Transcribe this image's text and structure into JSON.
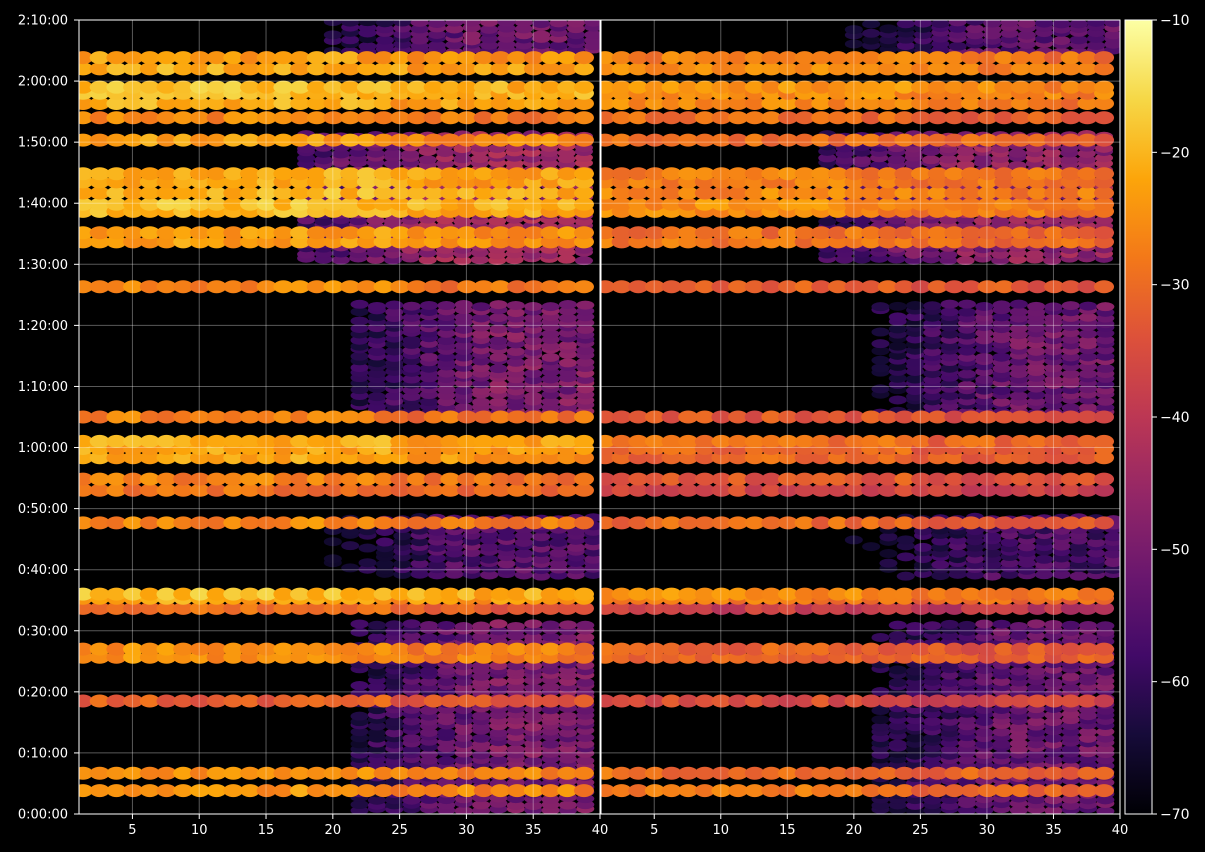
{
  "chart_data": {
    "type": "heatmap",
    "title": "",
    "xlabel": "",
    "ylabel": "",
    "background": "#000000",
    "colormap": "inferno",
    "grid": true,
    "panels": [
      {
        "name": "left",
        "x_range": [
          1,
          40
        ],
        "x_ticks": [
          5,
          10,
          15,
          20,
          25,
          30,
          35,
          40
        ],
        "x_tick_labels": [
          "5",
          "10",
          "15",
          "20",
          "25",
          "30",
          "35",
          "40"
        ]
      },
      {
        "name": "right",
        "x_range": [
          1,
          40
        ],
        "x_ticks": [
          5,
          10,
          15,
          20,
          25,
          30,
          35,
          40
        ],
        "x_tick_labels": [
          "5",
          "10",
          "15",
          "20",
          "25",
          "30",
          "35",
          "40"
        ]
      }
    ],
    "y_range_seconds": [
      0,
      7800
    ],
    "y_ticks_seconds": [
      0,
      600,
      1200,
      1800,
      2400,
      3000,
      3600,
      4200,
      4800,
      5400,
      6000,
      6600,
      7200,
      7800
    ],
    "y_tick_labels": [
      "0:00:00",
      "0:10:00",
      "0:20:00",
      "0:30:00",
      "0:40:00",
      "0:50:00",
      "1:00:00",
      "1:10:00",
      "1:20:00",
      "1:30:00",
      "1:40:00",
      "1:50:00",
      "2:00:00",
      "2:10:00"
    ],
    "colorbar": {
      "range": [
        -70,
        -10
      ],
      "ticks": [
        -70,
        -60,
        -50,
        -40,
        -30,
        -20,
        -10
      ],
      "tick_labels": [
        "−70",
        "−60",
        "−50",
        "−40",
        "−30",
        "−20",
        "−10"
      ]
    },
    "strong_bands_seconds": [
      {
        "center": 230,
        "left": -24,
        "right": -28
      },
      {
        "center": 400,
        "left": -24,
        "right": -29
      },
      {
        "center": 1110,
        "left": -32,
        "right": -35
      },
      {
        "center": 1540,
        "left": -25,
        "right": -30
      },
      {
        "center": 1620,
        "left": -25,
        "right": -31
      },
      {
        "center": 2020,
        "left": -30,
        "right": -38
      },
      {
        "center": 2120,
        "left": -22,
        "right": -28
      },
      {
        "center": 2160,
        "left": -19,
        "right": -25
      },
      {
        "center": 2860,
        "left": -26,
        "right": -30
      },
      {
        "center": 3180,
        "left": -29,
        "right": -36
      },
      {
        "center": 3290,
        "left": -27,
        "right": -33
      },
      {
        "center": 3500,
        "left": -22,
        "right": -30
      },
      {
        "center": 3590,
        "left": -22,
        "right": -30
      },
      {
        "center": 3660,
        "left": -21,
        "right": -29
      },
      {
        "center": 3900,
        "left": -27,
        "right": -33
      },
      {
        "center": 5180,
        "left": -26,
        "right": -31
      },
      {
        "center": 5620,
        "left": -23,
        "right": -28
      },
      {
        "center": 5710,
        "left": -23,
        "right": -29
      },
      {
        "center": 5920,
        "left": -20,
        "right": -26
      },
      {
        "center": 5990,
        "left": -19,
        "right": -25
      },
      {
        "center": 6100,
        "left": -20,
        "right": -26
      },
      {
        "center": 6210,
        "left": -21,
        "right": -27
      },
      {
        "center": 6290,
        "left": -21,
        "right": -27
      },
      {
        "center": 6620,
        "left": -23,
        "right": -29
      },
      {
        "center": 6840,
        "left": -26,
        "right": -30
      },
      {
        "center": 6980,
        "left": -21,
        "right": -26
      },
      {
        "center": 7080,
        "left": -19,
        "right": -25
      },
      {
        "center": 7140,
        "left": -19,
        "right": -24
      },
      {
        "center": 7320,
        "left": -21,
        "right": -25
      },
      {
        "center": 7430,
        "left": -23,
        "right": -27
      }
    ],
    "diffuse_regions_seconds": [
      {
        "from": 40,
        "to": 1900,
        "x_from": 24,
        "level": -50
      },
      {
        "from": 2350,
        "to": 2950,
        "x_from": 22,
        "level": -55
      },
      {
        "from": 3950,
        "to": 5000,
        "x_from": 24,
        "level": -50
      },
      {
        "from": 5450,
        "to": 6700,
        "x_from": 20,
        "level": -45
      },
      {
        "from": 7500,
        "to": 7800,
        "x_from": 22,
        "level": -52
      }
    ]
  }
}
